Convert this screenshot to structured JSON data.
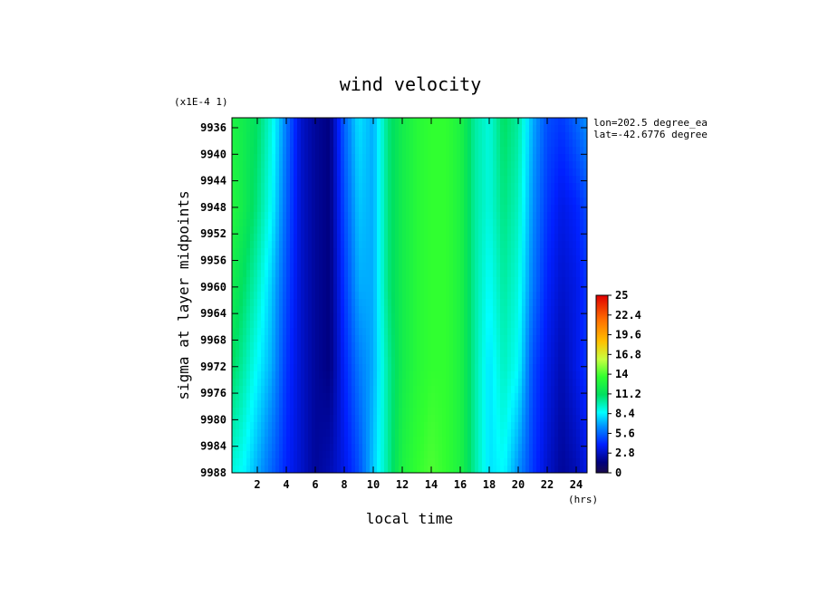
{
  "chart_data": {
    "type": "heatmap",
    "title": "wind velocity",
    "xlabel": "local time",
    "ylabel": "sigma at layer midpoints",
    "x_unit": "(hrs)",
    "y_scale_label": "(x1E-4 1)",
    "annotations": [
      "lon=202.5 degree_ea",
      "lat=-42.6776 degree"
    ],
    "xlim": [
      0.25,
      24.75
    ],
    "ylim": [
      9988,
      9934.5
    ],
    "x_ticks": [
      "2",
      "4",
      "6",
      "8",
      "10",
      "12",
      "14",
      "16",
      "18",
      "20",
      "22",
      "24"
    ],
    "y_ticks": [
      "9936",
      "9940",
      "9944",
      "9948",
      "9952",
      "9956",
      "9960",
      "9964",
      "9968",
      "9972",
      "9976",
      "9980",
      "9984",
      "9988"
    ],
    "colorbar": {
      "min": 0,
      "max": 25,
      "tick_labels": [
        "25",
        "22.4",
        "19.6",
        "16.8",
        "14",
        "11.2",
        "8.4",
        "5.6",
        "2.8",
        "0"
      ]
    },
    "x": [
      0.25,
      1,
      2,
      3,
      4,
      5,
      6,
      7,
      8,
      9,
      10,
      11,
      12,
      13,
      14,
      15,
      16,
      17,
      18,
      19,
      20,
      21,
      22,
      23,
      24,
      24.75
    ],
    "sigma": [
      9935,
      9948,
      9960,
      9972,
      9988
    ],
    "values": [
      [
        12.5,
        12.0,
        11.0,
        9.0,
        6.0,
        3.0,
        2.0,
        1.5,
        5.5,
        8.0,
        7.0,
        10.5,
        12.0,
        13.0,
        13.5,
        13.5,
        12.5,
        10.0,
        9.0,
        11.0,
        10.0,
        7.0,
        5.0,
        4.5,
        5.5,
        6.5
      ],
      [
        12.8,
        12.0,
        10.5,
        8.5,
        5.5,
        3.0,
        2.0,
        1.5,
        5.0,
        7.5,
        7.0,
        10.5,
        12.0,
        13.0,
        13.5,
        13.5,
        12.5,
        10.0,
        9.0,
        10.5,
        9.5,
        6.5,
        4.5,
        3.5,
        4.0,
        5.0
      ],
      [
        12.0,
        11.0,
        9.5,
        7.5,
        5.0,
        3.0,
        2.0,
        1.5,
        4.5,
        7.0,
        7.0,
        10.5,
        12.0,
        13.0,
        13.5,
        13.5,
        12.5,
        10.0,
        8.5,
        10.0,
        9.0,
        6.0,
        4.0,
        3.0,
        3.5,
        4.5
      ],
      [
        11.0,
        10.0,
        8.5,
        7.0,
        4.5,
        3.0,
        2.0,
        1.5,
        4.0,
        6.0,
        7.0,
        10.0,
        12.0,
        13.0,
        13.5,
        13.5,
        12.5,
        10.0,
        8.0,
        9.5,
        8.5,
        5.0,
        3.5,
        2.5,
        3.5,
        4.5
      ],
      [
        9.0,
        8.5,
        7.0,
        5.5,
        4.0,
        3.0,
        2.0,
        2.5,
        3.5,
        5.0,
        7.5,
        10.0,
        12.5,
        13.5,
        14.0,
        13.5,
        12.5,
        10.0,
        8.0,
        8.5,
        6.5,
        4.5,
        3.0,
        2.0,
        2.5,
        3.5
      ]
    ]
  }
}
